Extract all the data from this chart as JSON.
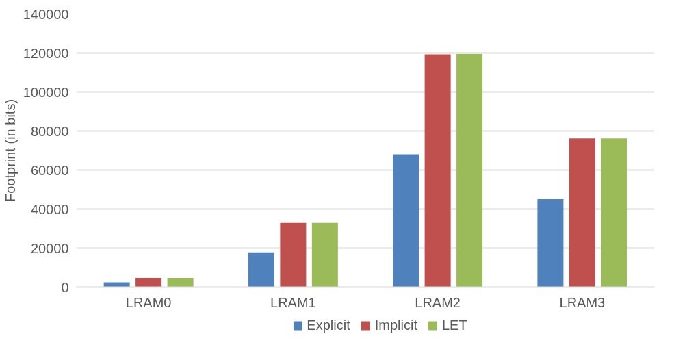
{
  "chart_data": {
    "type": "bar",
    "ylabel": "Footprint (in bits)",
    "categories": [
      "LRAM0",
      "LRAM1",
      "LRAM2",
      "LRAM3"
    ],
    "series": [
      {
        "name": "Explicit",
        "color": "#4f81bd",
        "values": [
          2500,
          17800,
          68100,
          45100
        ]
      },
      {
        "name": "Implicit",
        "color": "#c0504d",
        "values": [
          4700,
          32900,
          119300,
          76200
        ]
      },
      {
        "name": "LET",
        "color": "#9bbb59",
        "values": [
          4700,
          32900,
          119500,
          76200
        ]
      }
    ],
    "ylim": [
      0,
      140000
    ],
    "yticks": [
      0,
      20000,
      40000,
      60000,
      80000,
      100000,
      120000,
      140000
    ],
    "grid": "y",
    "legend": "bottom"
  }
}
